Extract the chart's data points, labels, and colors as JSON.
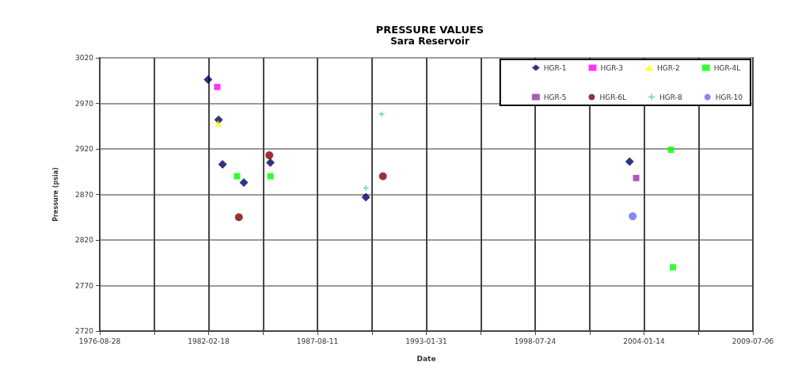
{
  "chart_data": {
    "type": "scatter",
    "title": "PRESSURE VALUES",
    "subtitle": "Sara Reservoir",
    "xlabel": "Date",
    "ylabel": "Pressure (psia)",
    "xlim": [
      "1976-08-28",
      "2009-07-06"
    ],
    "xticks": [
      "1976-08-28",
      {
        "value": "1979-05-25",
        "label": null
      },
      "1982-02-18",
      {
        "value": "1984-11-14",
        "label": null
      },
      "1987-08-11",
      {
        "value": "1990-05-07",
        "label": null
      },
      "1993-01-31",
      {
        "value": "1995-10-28",
        "label": null
      },
      "1998-07-24",
      {
        "value": "2001-04-19",
        "label": null
      },
      "2004-01-14",
      {
        "value": "2006-10-10",
        "label": null
      },
      "2009-07-06"
    ],
    "ylim": [
      2720,
      3020
    ],
    "yticks": [
      2720,
      2770,
      2820,
      2870,
      2920,
      2970,
      3020
    ],
    "grid": true,
    "legend": "top right",
    "series": [
      {
        "name": "HGR-1",
        "color": "#000066",
        "marker": "diamond",
        "x": [
          "1982-02-08",
          "1982-08-21",
          "1982-11-01",
          "1983-11-27",
          "1985-03-29",
          "1990-01-16",
          "2003-04-24"
        ],
        "values": [
          2996,
          2952,
          2903,
          2883,
          2905,
          2867,
          2906
        ]
      },
      {
        "name": "HGR-3",
        "color": "#ff00ff",
        "marker": "square",
        "x": [
          "1982-07-27"
        ],
        "values": [
          2988
        ]
      },
      {
        "name": "HGR-2",
        "color": "#ffff00",
        "marker": "triangle",
        "x": [
          "1982-08-11"
        ],
        "values": [
          2948
        ]
      },
      {
        "name": "HGR-4L",
        "color": "#00ff00",
        "marker": "square",
        "x": [
          "1983-07-25",
          "1985-03-29",
          "2005-05-21",
          "2005-06-28"
        ],
        "values": [
          2890,
          2890,
          2919,
          2790
        ]
      },
      {
        "name": "HGR-5",
        "color": "#993399",
        "marker": "square",
        "x": [
          "2003-08-22"
        ],
        "values": [
          2888
        ]
      },
      {
        "name": "HGR-6L",
        "color": "#800000",
        "marker": "circle",
        "x": [
          "1983-08-28",
          "1985-03-10",
          "1990-11-26"
        ],
        "values": [
          2845,
          2913,
          2890
        ]
      },
      {
        "name": "HGR-8",
        "color": "#33cccc",
        "marker": "cross",
        "x": [
          "1990-01-16",
          "1990-11-02"
        ],
        "values": [
          2877,
          2958
        ]
      },
      {
        "name": "HGR-10",
        "color": "#6666ff",
        "marker": "circle",
        "x": [
          "2003-06-20"
        ],
        "values": [
          2846
        ]
      }
    ]
  }
}
